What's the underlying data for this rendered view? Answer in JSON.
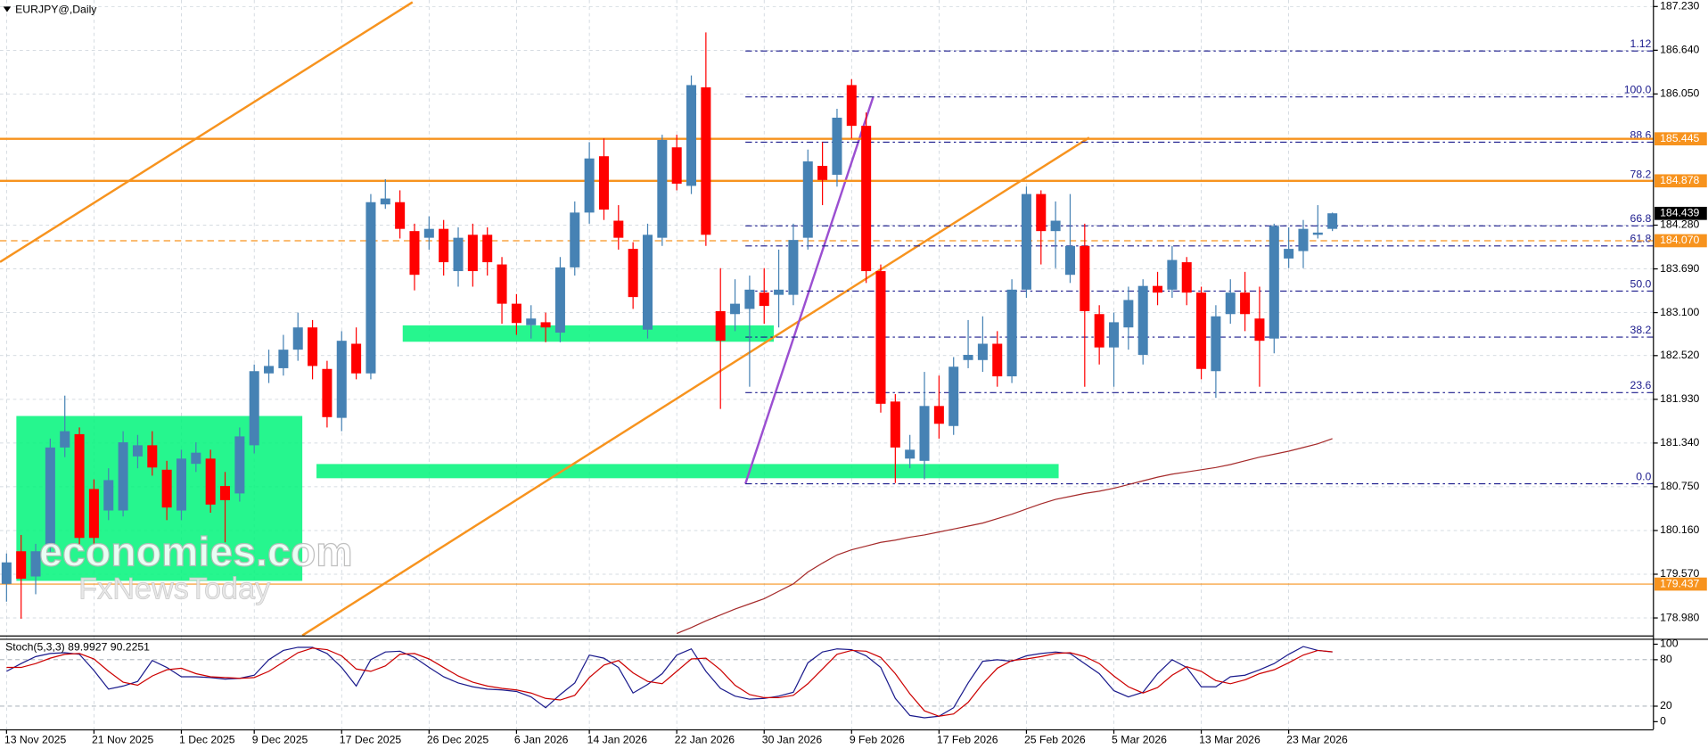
{
  "chart_data": [
    {
      "type": "candlestick",
      "title": "EURJPY@,Daily",
      "categories": [
        "13 Nov 2025",
        null,
        null,
        null,
        null,
        null,
        "21 Nov 2025",
        null,
        null,
        null,
        null,
        null,
        "1 Dec 2025",
        null,
        null,
        null,
        null,
        "9 Dec 2025",
        null,
        null,
        null,
        null,
        null,
        "17 Dec 2025",
        null,
        null,
        null,
        null,
        null,
        "26 Dec 2025",
        null,
        null,
        null,
        null,
        null,
        "6 Jan 2026",
        null,
        null,
        null,
        null,
        "14 Jan 2026",
        null,
        null,
        null,
        null,
        null,
        "22 Jan 2026",
        null,
        null,
        null,
        null,
        null,
        "30 Jan 2026",
        null,
        null,
        null,
        null,
        null,
        "9 Feb 2026",
        null,
        null,
        null,
        null,
        null,
        "17 Feb 2026",
        null,
        null,
        null,
        null,
        null,
        "25 Feb 2026",
        null,
        null,
        null,
        null,
        null,
        "5 Mar 2026",
        null,
        null,
        null,
        null,
        null,
        "13 Mar 2026",
        null,
        null,
        null,
        null,
        null,
        "23 Mar 2026",
        null,
        null,
        null
      ],
      "open": [
        179.44,
        179.88,
        179.54,
        179.95,
        181.28,
        181.46,
        180.72,
        180.43,
        180.43,
        181.16,
        181.31,
        180.98,
        180.43,
        181.06,
        181.13,
        180.76,
        180.66,
        181.31,
        182.28,
        182.35,
        182.6,
        182.9,
        182.34,
        181.68,
        182.68,
        182.28,
        184.56,
        184.59,
        184.2,
        184.11,
        184.23,
        183.66,
        184.15,
        184.15,
        183.75,
        183.22,
        182.93,
        182.97,
        182.83,
        183.71,
        184.45,
        185.21,
        184.34,
        183.96,
        182.87,
        184.11,
        185.33,
        184.81,
        186.14,
        183.12,
        183.08,
        183.15,
        183.37,
        183.34,
        183.34,
        184.11,
        185.08,
        184.96,
        186.17,
        185.62,
        183.66,
        181.9,
        181.13,
        181.1,
        181.84,
        181.57,
        182.46,
        182.46,
        182.68,
        182.24,
        183.41,
        184.7,
        184.2,
        183.61,
        184.0,
        183.08,
        182.63,
        182.9,
        182.53,
        183.46,
        183.41,
        183.78,
        183.37,
        182.31,
        183.08,
        183.37,
        183.02,
        182.75,
        183.83,
        183.93,
        184.15,
        184.23
      ],
      "high": [
        179.85,
        180.1,
        179.98,
        181.4,
        181.98,
        181.55,
        180.85,
        181.0,
        181.5,
        181.45,
        181.5,
        181.1,
        181.25,
        181.35,
        181.25,
        180.95,
        181.55,
        182.4,
        182.6,
        182.8,
        183.1,
        183.0,
        182.45,
        182.85,
        182.9,
        184.7,
        184.9,
        184.75,
        184.3,
        184.4,
        184.35,
        184.25,
        184.3,
        184.25,
        183.85,
        183.35,
        183.2,
        183.1,
        183.85,
        184.6,
        185.4,
        185.45,
        184.55,
        184.05,
        184.3,
        185.5,
        185.5,
        186.3,
        186.88,
        183.7,
        183.55,
        183.6,
        183.7,
        183.95,
        184.3,
        185.3,
        185.4,
        185.85,
        186.25,
        185.8,
        183.75,
        182.0,
        181.45,
        182.3,
        182.25,
        182.5,
        183.0,
        183.05,
        182.85,
        183.55,
        184.8,
        184.75,
        184.6,
        184.7,
        184.3,
        183.2,
        183.1,
        183.45,
        183.55,
        183.65,
        184.0,
        183.85,
        183.45,
        183.2,
        183.55,
        183.65,
        183.45,
        184.3,
        184.25,
        184.35,
        184.55,
        184.45
      ],
      "low": [
        179.2,
        178.97,
        179.3,
        179.85,
        181.15,
        179.95,
        179.9,
        180.3,
        180.35,
        181.0,
        180.9,
        180.3,
        180.3,
        180.95,
        180.4,
        180.0,
        180.55,
        181.2,
        182.15,
        182.25,
        182.45,
        182.2,
        181.55,
        181.5,
        182.2,
        182.2,
        184.5,
        184.1,
        183.4,
        183.95,
        183.6,
        183.45,
        183.45,
        183.6,
        182.95,
        182.8,
        182.75,
        182.7,
        182.7,
        183.6,
        184.3,
        184.35,
        183.95,
        183.15,
        182.75,
        184.0,
        184.75,
        184.7,
        184.0,
        181.8,
        182.85,
        182.1,
        182.95,
        182.9,
        183.2,
        183.95,
        184.55,
        184.8,
        185.45,
        183.5,
        181.75,
        180.8,
        181.0,
        180.85,
        181.4,
        181.45,
        182.35,
        182.3,
        182.1,
        182.15,
        183.3,
        183.75,
        183.7,
        183.5,
        182.1,
        182.4,
        182.1,
        182.6,
        182.4,
        183.2,
        183.3,
        183.2,
        182.2,
        181.95,
        182.95,
        182.85,
        182.1,
        182.55,
        183.7,
        183.7,
        184.1,
        184.2
      ],
      "close": [
        179.73,
        179.51,
        179.88,
        181.28,
        181.5,
        180.06,
        180.06,
        180.84,
        181.35,
        181.31,
        181.01,
        180.47,
        181.13,
        181.21,
        180.51,
        180.57,
        181.43,
        182.31,
        182.38,
        182.6,
        182.9,
        182.38,
        181.69,
        182.72,
        182.28,
        184.59,
        184.64,
        184.23,
        183.61,
        184.23,
        183.78,
        184.11,
        183.66,
        183.78,
        183.22,
        182.96,
        183.02,
        182.9,
        183.71,
        184.45,
        185.18,
        184.49,
        184.11,
        183.31,
        184.15,
        185.43,
        184.84,
        186.17,
        184.15,
        182.72,
        183.22,
        183.41,
        183.19,
        183.41,
        184.08,
        185.14,
        184.89,
        185.73,
        185.62,
        183.66,
        181.87,
        181.28,
        181.25,
        181.84,
        181.6,
        182.37,
        182.53,
        182.68,
        182.24,
        183.41,
        184.7,
        184.2,
        184.34,
        184.0,
        183.12,
        182.63,
        182.97,
        183.27,
        183.46,
        183.37,
        183.81,
        183.37,
        182.34,
        183.05,
        183.37,
        183.08,
        182.72,
        184.27,
        183.96,
        184.23,
        184.18,
        184.44
      ],
      "up_color": "#4682b4",
      "down_color": "#ff0000",
      "moving_average": {
        "color": "#a52a2a",
        "values": [
          null,
          null,
          null,
          null,
          null,
          null,
          null,
          null,
          null,
          null,
          null,
          null,
          null,
          null,
          null,
          null,
          null,
          null,
          null,
          null,
          null,
          null,
          null,
          null,
          null,
          null,
          null,
          null,
          null,
          null,
          null,
          null,
          null,
          null,
          null,
          null,
          null,
          null,
          null,
          null,
          null,
          null,
          null,
          null,
          null,
          null,
          178.77,
          178.85,
          178.94,
          179.02,
          179.1,
          179.17,
          179.24,
          179.34,
          179.44,
          179.6,
          179.72,
          179.83,
          179.9,
          179.95,
          180.0,
          180.03,
          180.07,
          180.1,
          180.14,
          180.18,
          180.22,
          180.26,
          180.32,
          180.38,
          180.45,
          180.52,
          180.58,
          180.62,
          180.66,
          180.69,
          180.73,
          180.78,
          180.83,
          180.88,
          180.92,
          180.95,
          180.98,
          181.01,
          181.05,
          181.1,
          181.15,
          181.19,
          181.23,
          181.28,
          181.33,
          181.4
        ]
      },
      "ylim": [
        178.744,
        187.318
      ],
      "yticks": [
        {
          "value": 187.23,
          "label": "187.230"
        },
        {
          "value": 186.64,
          "label": "186.640"
        },
        {
          "value": 186.05,
          "label": "186.050"
        },
        {
          "value": 184.28,
          "label": "184.280"
        },
        {
          "value": 183.69,
          "label": "183.690"
        },
        {
          "value": 183.1,
          "label": "183.100"
        },
        {
          "value": 182.52,
          "label": "182.520"
        },
        {
          "value": 181.93,
          "label": "181.930"
        },
        {
          "value": 181.34,
          "label": "181.340"
        },
        {
          "value": 180.75,
          "label": "180.750"
        },
        {
          "value": 180.16,
          "label": "180.160"
        },
        {
          "value": 179.57,
          "label": "179.570"
        },
        {
          "value": 178.98,
          "label": "178.980"
        }
      ],
      "grid": true,
      "levels": [
        {
          "value": 185.445,
          "color": "#f7931e",
          "width": 2
        },
        {
          "value": 184.878,
          "color": "#f7931e",
          "width": 2
        },
        {
          "value": 184.07,
          "label": "184.070",
          "color": "#f7931e",
          "width": 1,
          "dashed": true
        },
        {
          "value": 179.437,
          "color": "#f7931e",
          "width": 1
        }
      ],
      "current_price": {
        "value": 184.439,
        "color": "#000000"
      },
      "fib_color": "#1a1a8c",
      "fib_levels": [
        {
          "label": "1.12",
          "price": 186.63
        },
        {
          "label": "100.0",
          "price": 186.01
        },
        {
          "label": "88.6",
          "price": 185.4
        },
        {
          "label": "78.2",
          "price": 184.87
        },
        {
          "label": "66.8",
          "price": 184.27
        },
        {
          "label": "61.8",
          "price": 184.0
        },
        {
          "label": "50.0",
          "price": 183.39
        },
        {
          "label": "38.2",
          "price": 182.77
        },
        {
          "label": "23.6",
          "price": 182.02
        },
        {
          "label": "0.0",
          "price": 180.79
        }
      ],
      "watermark": [
        "economies.com",
        "FxNewsToday"
      ]
    },
    {
      "type": "line",
      "title": "Stoch(5,3,3) 89.9927 90.2251",
      "series": [
        {
          "color": "#1a1a8c",
          "values": [
            65,
            75,
            84,
            88,
            89,
            87,
            66,
            42,
            46,
            52,
            79,
            70,
            58,
            58,
            57,
            55,
            56,
            60,
            80,
            92,
            96,
            96,
            88,
            70,
            46,
            80,
            90,
            91,
            83,
            70,
            58,
            50,
            45,
            42,
            41,
            39,
            32,
            18,
            35,
            50,
            86,
            82,
            70,
            37,
            48,
            62,
            86,
            94,
            65,
            43,
            33,
            29,
            30,
            33,
            38,
            76,
            90,
            94,
            93,
            85,
            70,
            30,
            8,
            5,
            7,
            18,
            50,
            78,
            80,
            78,
            85,
            88,
            90,
            88,
            75,
            62,
            40,
            32,
            38,
            62,
            80,
            70,
            45,
            45,
            58,
            60,
            67,
            75,
            87,
            97,
            92,
            89.99
          ]
        },
        {
          "color": "#cc0000",
          "values": [
            70,
            70,
            75,
            82,
            87,
            88,
            81,
            65,
            51,
            47,
            59,
            67,
            69,
            62,
            58,
            57,
            56,
            57,
            65,
            77,
            89,
            95,
            93,
            85,
            68,
            65,
            72,
            87,
            88,
            81,
            70,
            59,
            51,
            46,
            43,
            41,
            37,
            30,
            28,
            34,
            57,
            73,
            79,
            63,
            52,
            49,
            65,
            81,
            82,
            67,
            47,
            35,
            31,
            31,
            34,
            49,
            68,
            87,
            92,
            91,
            83,
            62,
            36,
            14,
            7,
            10,
            25,
            49,
            69,
            79,
            81,
            84,
            88,
            89,
            84,
            75,
            59,
            45,
            37,
            44,
            60,
            71,
            65,
            53,
            49,
            54,
            62,
            67,
            76,
            86,
            92,
            90.23
          ]
        }
      ],
      "ylim": [
        -9.9,
        108.5
      ],
      "yticks": [
        100,
        80,
        20,
        0
      ],
      "dashed_levels": [
        80,
        20
      ]
    }
  ]
}
